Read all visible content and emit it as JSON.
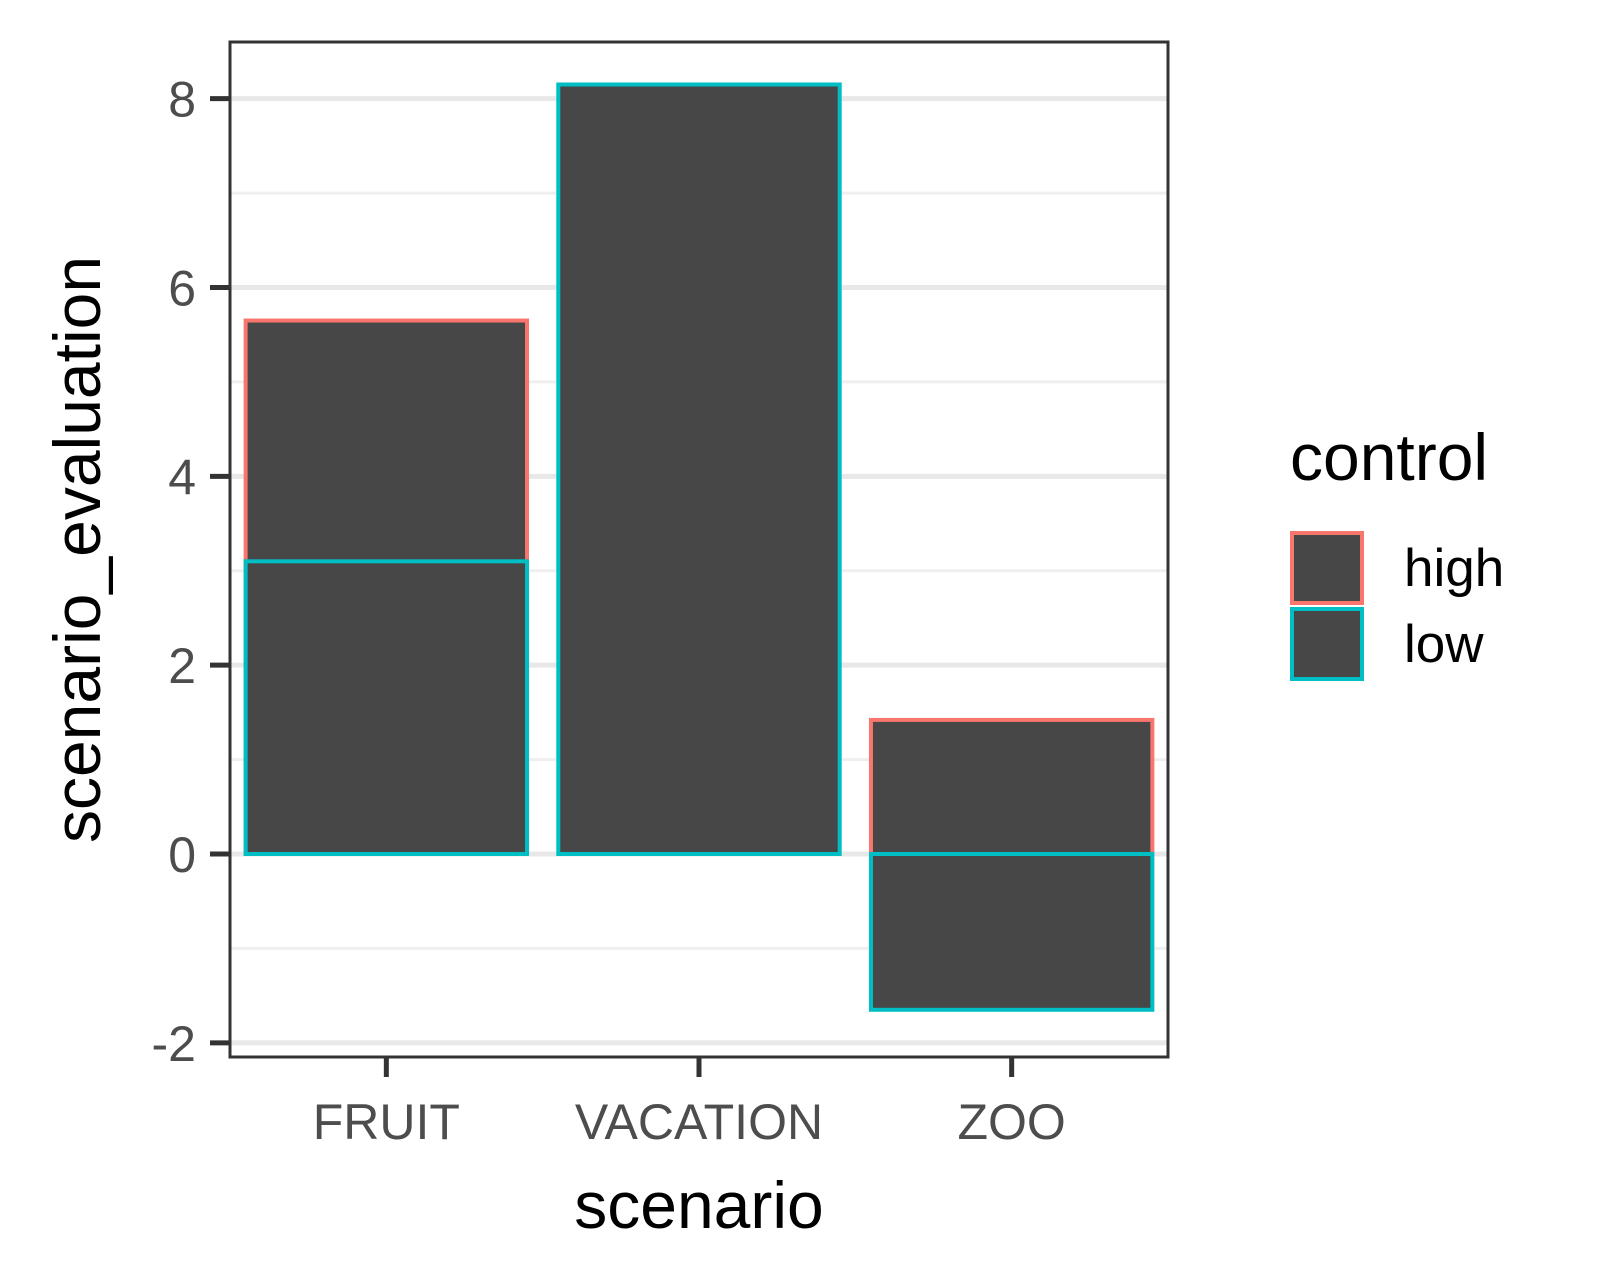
{
  "chart_data": {
    "type": "bar",
    "stacking": "overlaid-from-zero",
    "categories": [
      "FRUIT",
      "VACATION",
      "ZOO"
    ],
    "series": [
      {
        "name": "high",
        "values": [
          5.65,
          null,
          1.42
        ]
      },
      {
        "name": "low",
        "values": [
          3.1,
          8.15,
          -1.65
        ]
      }
    ],
    "title": "",
    "xlabel": "scenario",
    "ylabel": "scenario_evaluation",
    "ylim": [
      -2.15,
      8.6
    ],
    "yticks": [
      -2,
      0,
      2,
      4,
      6,
      8
    ],
    "grid": true,
    "legend": {
      "title": "control",
      "position": "right"
    }
  },
  "colors": {
    "bar_fill": "#474747",
    "high": "#f8766d",
    "low": "#00bfc4",
    "grid_major": "#e8e8e8",
    "grid_minor": "#efefef",
    "panel_border": "#333333",
    "tick_text": "#4d4d4d"
  }
}
